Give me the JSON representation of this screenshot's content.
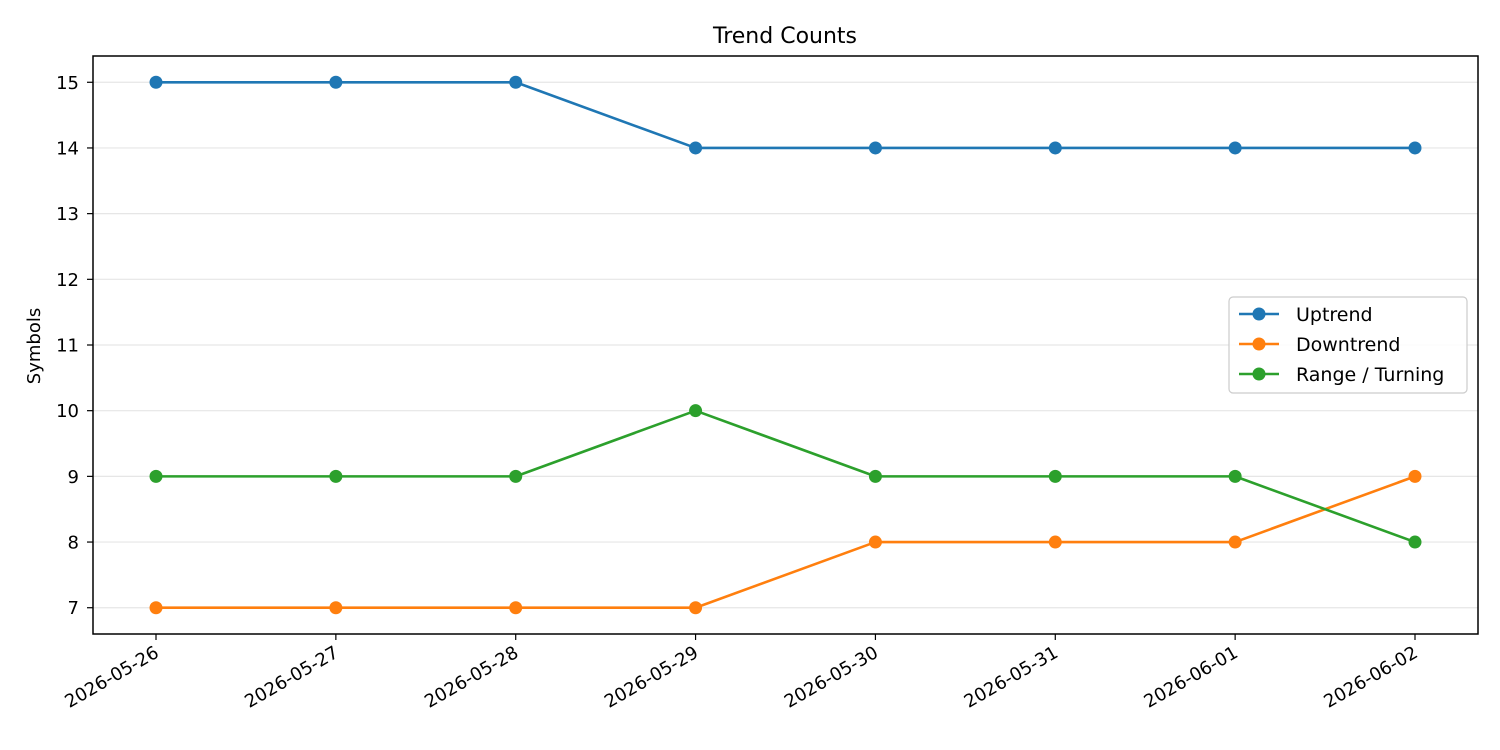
{
  "chart_data": {
    "type": "line",
    "title": "Trend Counts",
    "xlabel": "",
    "ylabel": "Symbols",
    "x": [
      "2026-05-26",
      "2026-05-27",
      "2026-05-28",
      "2026-05-29",
      "2026-05-30",
      "2026-05-31",
      "2026-06-01",
      "2026-06-02"
    ],
    "yticks": [
      7,
      8,
      9,
      10,
      11,
      12,
      13,
      14,
      15
    ],
    "ylim": [
      6.6,
      15.4
    ],
    "grid": "horizontal",
    "legend_position": "center-right",
    "series": [
      {
        "name": "Uptrend",
        "color": "#1f77b4",
        "values": [
          15,
          15,
          15,
          14,
          14,
          14,
          14,
          14
        ]
      },
      {
        "name": "Downtrend",
        "color": "#ff7f0e",
        "values": [
          7,
          7,
          7,
          7,
          8,
          8,
          8,
          9
        ]
      },
      {
        "name": "Range / Turning",
        "color": "#2ca02c",
        "values": [
          9,
          9,
          9,
          10,
          9,
          9,
          9,
          8
        ]
      }
    ]
  }
}
